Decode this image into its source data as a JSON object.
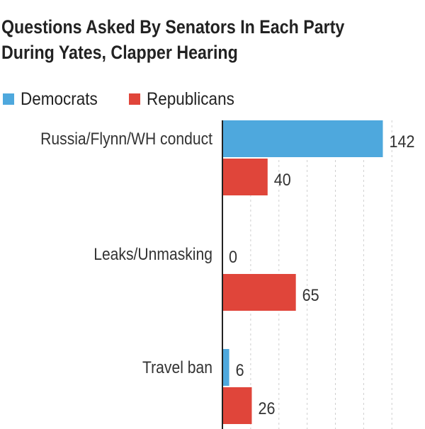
{
  "chart_data": {
    "type": "bar",
    "orientation": "horizontal",
    "title_lines": [
      "Questions Asked By Senators In Each Party",
      "During Yates, Clapper Hearing"
    ],
    "categories": [
      "Russia/Flynn/WH conduct",
      "Leaks/Unmasking",
      "Travel ban"
    ],
    "series": [
      {
        "name": "Democrats",
        "color": "#4ea8dd",
        "values": [
          142,
          0,
          6
        ]
      },
      {
        "name": "Republicans",
        "color": "#e0453a",
        "values": [
          40,
          65,
          26
        ]
      }
    ],
    "xlim": [
      0,
      150
    ],
    "grid": true,
    "legend_position": "top-left"
  }
}
